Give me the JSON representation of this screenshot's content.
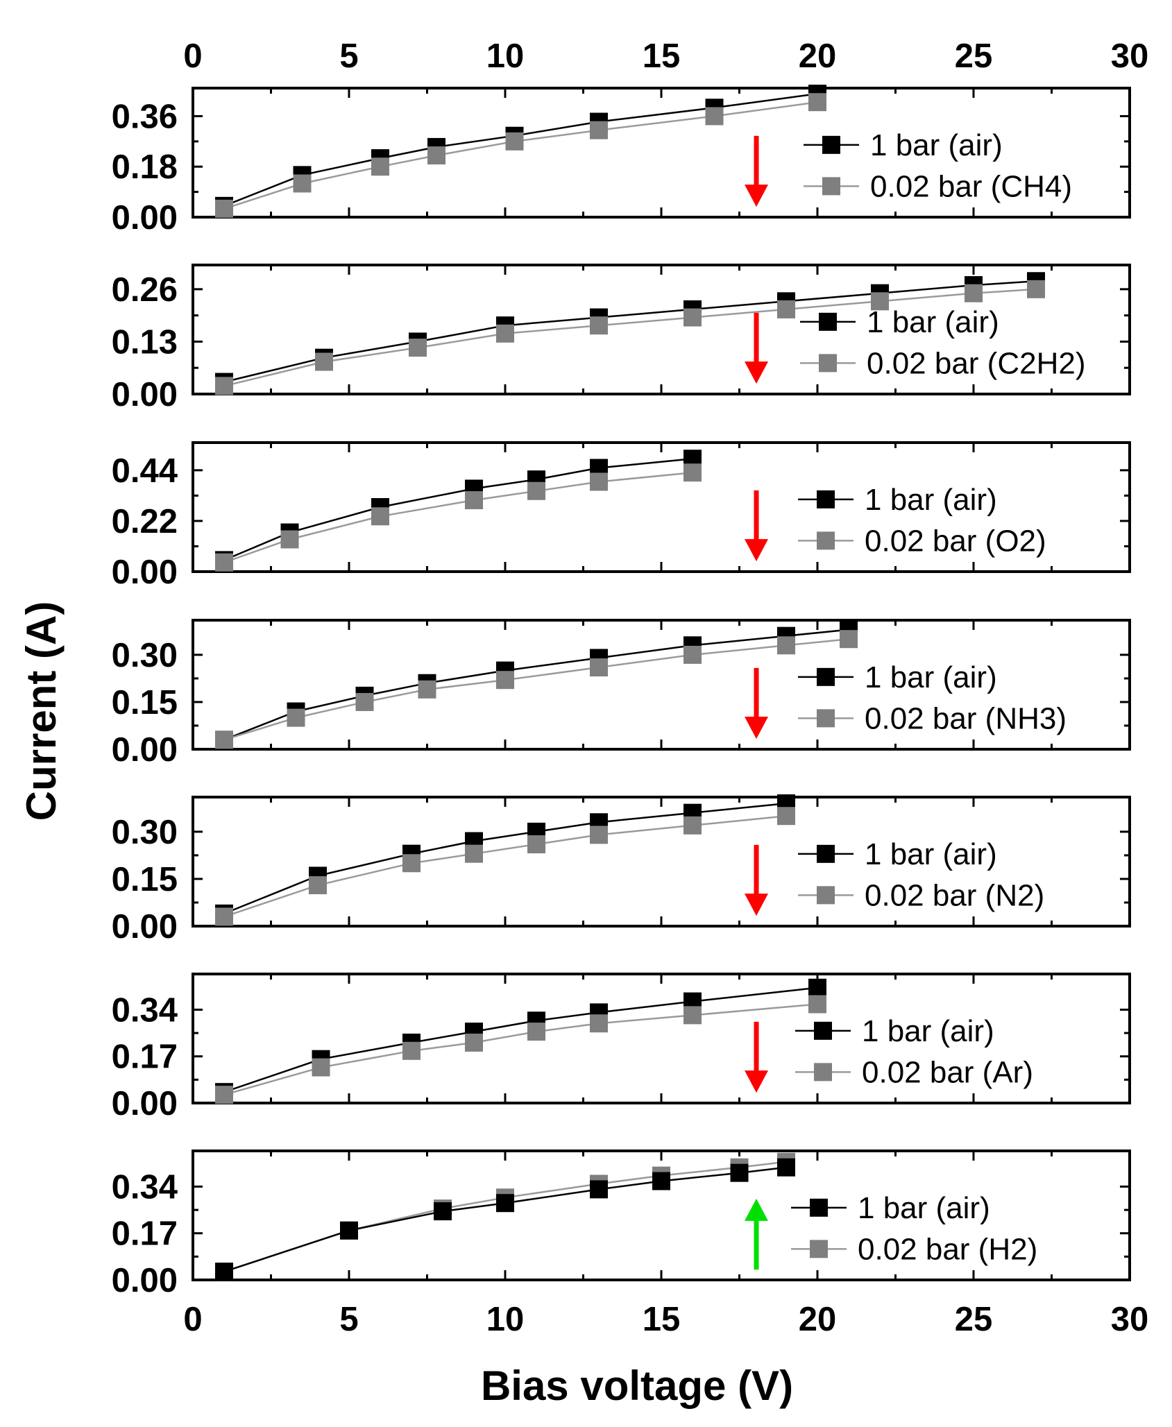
{
  "chart_data": {
    "type": "line",
    "xlabel": "Bias voltage (V)",
    "ylabel": "Current (A)",
    "xlim": [
      0,
      30
    ],
    "xticks": [
      0,
      5,
      10,
      15,
      20,
      25,
      30
    ],
    "colors": {
      "air": "#000000",
      "gas": "#7f7f7f",
      "arrow_down": "#ff0000",
      "arrow_up": "#00e000"
    },
    "panels": [
      {
        "gas": "CH4",
        "ylim": [
          0,
          0.46
        ],
        "yticks": [
          "0.00",
          "0.18",
          "0.36"
        ],
        "arrow": "down",
        "series": [
          {
            "name": "1 bar (air)",
            "x": [
              1,
              3.5,
              6,
              7.8,
              10.3,
              13,
              16.7,
              20
            ],
            "y": [
              0.04,
              0.15,
              0.21,
              0.25,
              0.29,
              0.34,
              0.39,
              0.44
            ]
          },
          {
            "name": "0.02 bar (CH4)",
            "x": [
              1,
              3.5,
              6,
              7.8,
              10.3,
              13,
              16.7,
              20
            ],
            "y": [
              0.03,
              0.12,
              0.18,
              0.22,
              0.27,
              0.31,
              0.36,
              0.41
            ]
          }
        ]
      },
      {
        "gas": "C2H2",
        "ylim": [
          0,
          0.32
        ],
        "yticks": [
          "0.00",
          "0.13",
          "0.26"
        ],
        "arrow": "down",
        "series": [
          {
            "name": "1 bar (air)",
            "x": [
              1,
              4.2,
              7.2,
              10,
              13,
              16,
              19,
              22,
              25,
              27
            ],
            "y": [
              0.03,
              0.09,
              0.13,
              0.17,
              0.19,
              0.21,
              0.23,
              0.25,
              0.27,
              0.28
            ]
          },
          {
            "name": "0.02 bar (C2H2)",
            "x": [
              1,
              4.2,
              7.2,
              10,
              13,
              16,
              19,
              22,
              25,
              27
            ],
            "y": [
              0.02,
              0.08,
              0.115,
              0.15,
              0.17,
              0.19,
              0.21,
              0.23,
              0.25,
              0.26
            ]
          }
        ]
      },
      {
        "gas": "O2",
        "ylim": [
          0,
          0.56
        ],
        "yticks": [
          "0.00",
          "0.22",
          "0.44"
        ],
        "arrow": "down",
        "series": [
          {
            "name": "1 bar (air)",
            "x": [
              1,
              3.1,
              6,
              9,
              11,
              13,
              16
            ],
            "y": [
              0.05,
              0.17,
              0.28,
              0.36,
              0.4,
              0.45,
              0.49
            ]
          },
          {
            "name": "0.02 bar (O2)",
            "x": [
              1,
              3.1,
              6,
              9,
              11,
              13,
              16
            ],
            "y": [
              0.04,
              0.14,
              0.24,
              0.31,
              0.35,
              0.39,
              0.43
            ]
          }
        ]
      },
      {
        "gas": "NH3",
        "ylim": [
          0,
          0.41
        ],
        "yticks": [
          "0.00",
          "0.15",
          "0.30"
        ],
        "arrow": "down",
        "series": [
          {
            "name": "1 bar (air)",
            "x": [
              1,
              3.3,
              5.5,
              7.5,
              10,
              13,
              16,
              19,
              21
            ],
            "y": [
              0.03,
              0.12,
              0.17,
              0.21,
              0.25,
              0.29,
              0.33,
              0.36,
              0.38
            ]
          },
          {
            "name": "0.02 bar (NH3)",
            "x": [
              1,
              3.3,
              5.5,
              7.5,
              10,
              13,
              16,
              19,
              21
            ],
            "y": [
              0.03,
              0.1,
              0.15,
              0.19,
              0.22,
              0.26,
              0.3,
              0.33,
              0.35
            ]
          }
        ]
      },
      {
        "gas": "N2",
        "ylim": [
          0,
          0.41
        ],
        "yticks": [
          "0.00",
          "0.15",
          "0.30"
        ],
        "arrow": "down",
        "series": [
          {
            "name": "1 bar (air)",
            "x": [
              1,
              4,
              7,
              9,
              11,
              13,
              16,
              19
            ],
            "y": [
              0.04,
              0.16,
              0.23,
              0.27,
              0.3,
              0.33,
              0.36,
              0.39
            ]
          },
          {
            "name": "0.02 bar (N2)",
            "x": [
              1,
              4,
              7,
              9,
              11,
              13,
              16,
              19
            ],
            "y": [
              0.03,
              0.13,
              0.2,
              0.23,
              0.26,
              0.29,
              0.32,
              0.35
            ]
          }
        ]
      },
      {
        "gas": "Ar",
        "ylim": [
          0,
          0.47
        ],
        "yticks": [
          "0.00",
          "0.17",
          "0.34"
        ],
        "arrow": "down",
        "series": [
          {
            "name": "1 bar (air)",
            "x": [
              1,
              4.1,
              7,
              9,
              11,
              13,
              16,
              20
            ],
            "y": [
              0.04,
              0.16,
              0.22,
              0.26,
              0.3,
              0.33,
              0.37,
              0.42
            ]
          },
          {
            "name": "0.02 bar (Ar)",
            "x": [
              1,
              4.1,
              7,
              9,
              11,
              13,
              16,
              20
            ],
            "y": [
              0.03,
              0.13,
              0.19,
              0.22,
              0.26,
              0.29,
              0.32,
              0.36
            ]
          }
        ]
      },
      {
        "gas": "H2",
        "ylim": [
          0,
          0.47
        ],
        "yticks": [
          "0.00",
          "0.17",
          "0.34"
        ],
        "arrow": "up",
        "series": [
          {
            "name": "1 bar (air)",
            "x": [
              1,
              5,
              8,
              10,
              13,
              15,
              17.5,
              19
            ],
            "y": [
              0.03,
              0.18,
              0.25,
              0.28,
              0.33,
              0.36,
              0.39,
              0.41
            ]
          },
          {
            "name": "0.02 bar (H2)",
            "x": [
              1,
              5,
              8,
              10,
              13,
              15,
              17.5,
              19
            ],
            "y": [
              0.03,
              0.18,
              0.26,
              0.3,
              0.35,
              0.38,
              0.41,
              0.43
            ]
          }
        ]
      }
    ]
  }
}
